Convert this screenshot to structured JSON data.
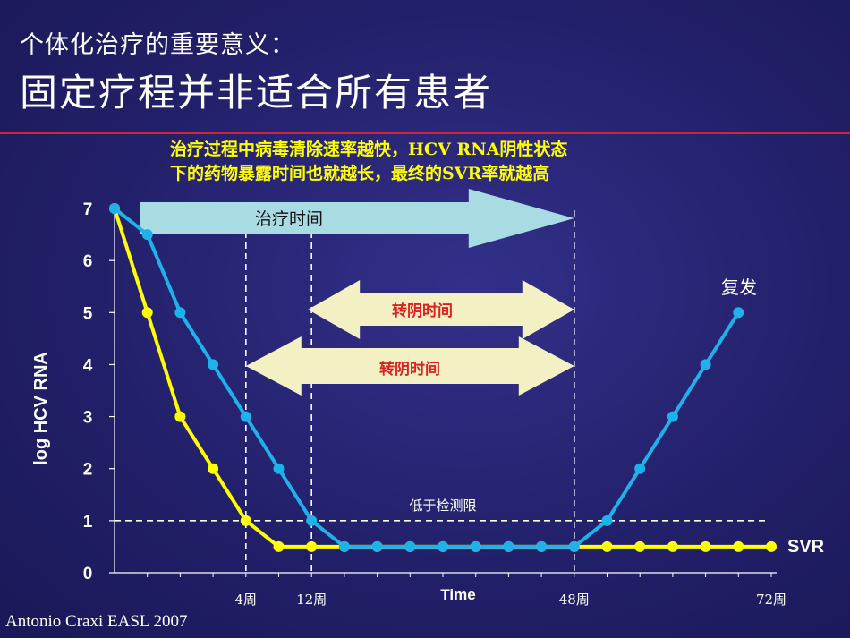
{
  "header": {
    "subtitle": "个体化治疗的重要意义：",
    "title": "固定疗程并非适合所有患者"
  },
  "note": {
    "line1": "治疗过程中病毒清除速率越快，HCV RNA阴性状态",
    "line2": "下的药物暴露时间也就越长，最终的SVR率就越高"
  },
  "citation": "Antonio Craxi EASL 2007",
  "colors": {
    "background": "#23206b",
    "divider": "#d0243a",
    "series_fast": "#ffff00",
    "series_slow": "#1fb2ea",
    "arrow_treatment": "#a8dce2",
    "arrow_negative": "#f3f0c4",
    "arrow_text_red": "#e0201e"
  },
  "chart_data": {
    "type": "line",
    "ylabel": "log HCV RNA",
    "xlabel": "Time",
    "ylim": [
      0,
      7
    ],
    "y_ticks": [
      "0",
      "1",
      "2",
      "3",
      "4",
      "5",
      "6",
      "7"
    ],
    "xlim": [
      0,
      20
    ],
    "x_tick_labels": [
      {
        "x": 4,
        "label": "4周"
      },
      {
        "x": 6,
        "label": "12周"
      },
      {
        "x": 14,
        "label": "48周"
      },
      {
        "x": 20,
        "label": "72周"
      }
    ],
    "series": [
      {
        "key": "fast",
        "color": "#ffff00",
        "x": [
          0,
          1,
          2,
          3,
          4,
          5,
          6,
          7,
          8,
          9,
          10,
          11,
          12,
          13,
          14,
          15,
          16,
          17,
          18,
          19,
          20
        ],
        "values": [
          7,
          5,
          3,
          2,
          1,
          0.5,
          0.5,
          0.5,
          0.5,
          0.5,
          0.5,
          0.5,
          0.5,
          0.5,
          0.5,
          0.5,
          0.5,
          0.5,
          0.5,
          0.5,
          0.5
        ]
      },
      {
        "key": "slow",
        "color": "#1fb2ea",
        "x": [
          0,
          1,
          2,
          3,
          4,
          5,
          6,
          7,
          8,
          9,
          10,
          11,
          12,
          13,
          14,
          15,
          16,
          17,
          18,
          19
        ],
        "values": [
          7,
          6.5,
          5,
          4,
          3,
          2,
          1,
          0.5,
          0.5,
          0.5,
          0.5,
          0.5,
          0.5,
          0.5,
          0.5,
          1,
          2,
          3,
          4,
          5
        ]
      }
    ],
    "reference_lines": {
      "vertical_x": [
        4,
        6,
        14
      ],
      "horizontal_y": 1,
      "horizontal_label": "低于检测限"
    },
    "annotations": {
      "treatment_arrow": {
        "label": "治疗时间",
        "from_x": 0,
        "to_x": 14
      },
      "negative_arrow_short": {
        "label": "转阴时间",
        "from_x": 6,
        "to_x": 14
      },
      "negative_arrow_long": {
        "label": "转阴时间",
        "from_x": 4,
        "to_x": 14
      },
      "relapse_label": "复发",
      "svr_label": "SVR"
    }
  }
}
